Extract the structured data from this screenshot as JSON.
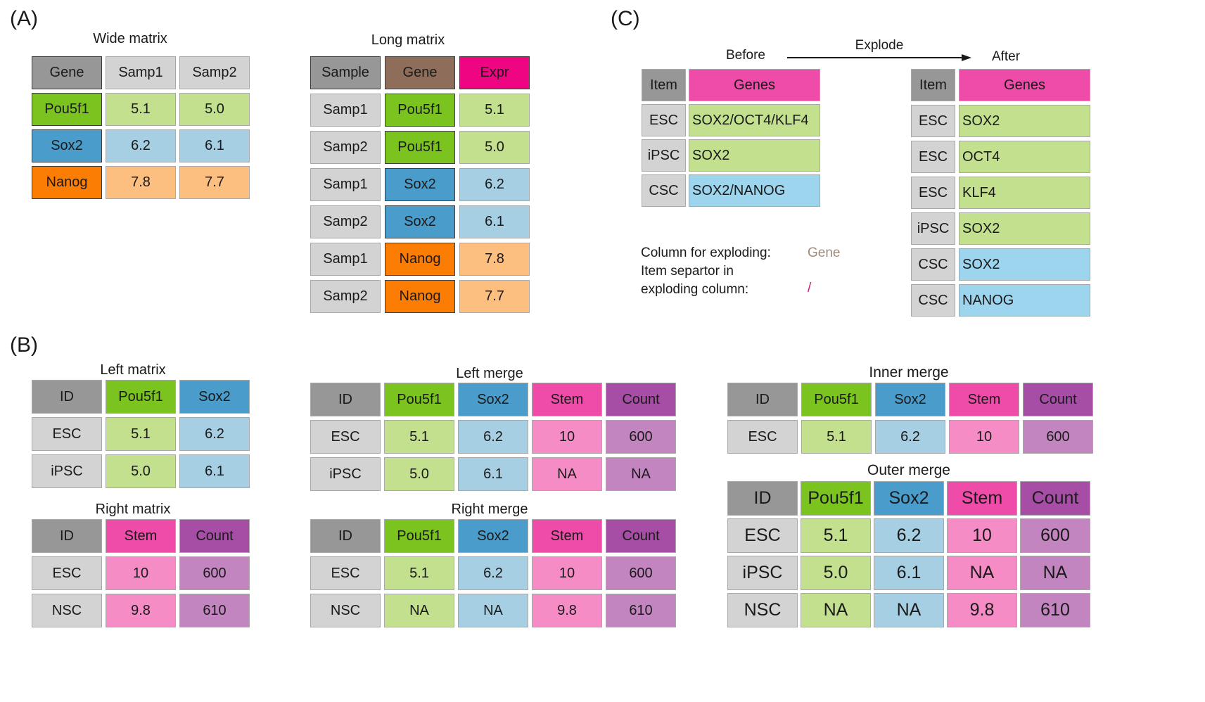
{
  "colors": {
    "header_gray": "#979797",
    "light_gray": "#d3d3d3",
    "green": "#7bc420",
    "light_green": "#c3e08e",
    "blue": "#4a9ccb",
    "light_blue": "#a7cfe4",
    "orange": "#fb7d04",
    "light_orange": "#fcbf80",
    "brown": "#8e6d5a",
    "magenta": "#ef0582",
    "pink": "#ee4ca8",
    "light_pink": "#f58cc5",
    "purple": "#a64ea5",
    "light_purple": "#c385c0",
    "sky": "#9dd4ee"
  },
  "panels": {
    "a": "(A)",
    "b": "(B)",
    "c": "(C)"
  },
  "titles": {
    "wide": "Wide matrix",
    "long": "Long matrix",
    "left_matrix": "Left matrix",
    "right_matrix": "Right matrix",
    "left_merge": "Left merge",
    "right_merge": "Right merge",
    "inner_merge": "Inner merge",
    "outer_merge": "Outer merge"
  },
  "explode": {
    "before": "Before",
    "after": "After",
    "arrow_label": "Explode",
    "col_label": "Column for exploding:",
    "col_value": "Gene",
    "sep_label_1": "Item separtor in",
    "sep_label_2": "exploding column:",
    "sep_value": "/"
  },
  "tables": {
    "wide": [
      [
        "Gene",
        "Samp1",
        "Samp2"
      ],
      [
        "Pou5f1",
        "5.1",
        "5.0"
      ],
      [
        "Sox2",
        "6.2",
        "6.1"
      ],
      [
        "Nanog",
        "7.8",
        "7.7"
      ]
    ],
    "long": [
      [
        "Sample",
        "Gene",
        "Expr"
      ],
      [
        "Samp1",
        "Pou5f1",
        "5.1"
      ],
      [
        "Samp2",
        "Pou5f1",
        "5.0"
      ],
      [
        "Samp1",
        "Sox2",
        "6.2"
      ],
      [
        "Samp2",
        "Sox2",
        "6.1"
      ],
      [
        "Samp1",
        "Nanog",
        "7.8"
      ],
      [
        "Samp2",
        "Nanog",
        "7.7"
      ]
    ],
    "before": [
      [
        "Item",
        "Genes"
      ],
      [
        "ESC",
        "SOX2/OCT4/KLF4"
      ],
      [
        "iPSC",
        "SOX2"
      ],
      [
        "CSC",
        "SOX2/NANOG"
      ]
    ],
    "after": [
      [
        "Item",
        "Genes"
      ],
      [
        "ESC",
        "SOX2"
      ],
      [
        "ESC",
        "OCT4"
      ],
      [
        "ESC",
        "KLF4"
      ],
      [
        "iPSC",
        "SOX2"
      ],
      [
        "CSC",
        "SOX2"
      ],
      [
        "CSC",
        "NANOG"
      ]
    ],
    "left_matrix": [
      [
        "ID",
        "Pou5f1",
        "Sox2"
      ],
      [
        "ESC",
        "5.1",
        "6.2"
      ],
      [
        "iPSC",
        "5.0",
        "6.1"
      ]
    ],
    "right_matrix": [
      [
        "ID",
        "Stem",
        "Count"
      ],
      [
        "ESC",
        "10",
        "600"
      ],
      [
        "NSC",
        "9.8",
        "610"
      ]
    ],
    "left_merge": [
      [
        "ID",
        "Pou5f1",
        "Sox2",
        "Stem",
        "Count"
      ],
      [
        "ESC",
        "5.1",
        "6.2",
        "10",
        "600"
      ],
      [
        "iPSC",
        "5.0",
        "6.1",
        "NA",
        "NA"
      ]
    ],
    "right_merge": [
      [
        "ID",
        "Pou5f1",
        "Sox2",
        "Stem",
        "Count"
      ],
      [
        "ESC",
        "5.1",
        "6.2",
        "10",
        "600"
      ],
      [
        "NSC",
        "NA",
        "NA",
        "9.8",
        "610"
      ]
    ],
    "inner_merge": [
      [
        "ID",
        "Pou5f1",
        "Sox2",
        "Stem",
        "Count"
      ],
      [
        "ESC",
        "5.1",
        "6.2",
        "10",
        "600"
      ]
    ],
    "outer_merge": [
      [
        "ID",
        "Pou5f1",
        "Sox2",
        "Stem",
        "Count"
      ],
      [
        "ESC",
        "5.1",
        "6.2",
        "10",
        "600"
      ],
      [
        "iPSC",
        "5.0",
        "6.1",
        "NA",
        "NA"
      ],
      [
        "NSC",
        "NA",
        "NA",
        "9.8",
        "610"
      ]
    ]
  }
}
